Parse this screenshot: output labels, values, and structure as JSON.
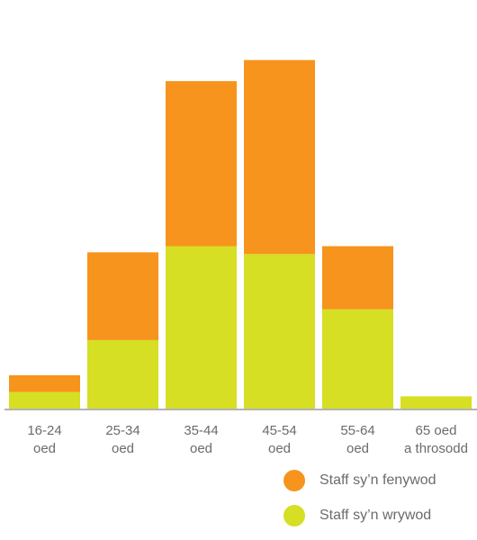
{
  "chart_data": {
    "type": "bar",
    "stacked": true,
    "categories": [
      [
        "16-24",
        "oed"
      ],
      [
        "25-34",
        "oed"
      ],
      [
        "35-44",
        "oed"
      ],
      [
        "45-54",
        "oed"
      ],
      [
        "55-64",
        "oed"
      ],
      [
        "65 oed",
        "a throsodd"
      ]
    ],
    "series": [
      {
        "name": "Staff sy’n wrywod",
        "color": "#d6df23",
        "values": [
          19,
          78,
          185,
          176,
          113,
          14
        ]
      },
      {
        "name": "Staff sy’n fenywod",
        "color": "#f7941d",
        "values": [
          19,
          100,
          188,
          221,
          72,
          0
        ]
      }
    ],
    "ylim": [
      0,
      400
    ],
    "grid": false,
    "baseline_color": "#9a9a9a",
    "legend_position": "bottom-right",
    "legend_order": [
      1,
      0
    ]
  }
}
